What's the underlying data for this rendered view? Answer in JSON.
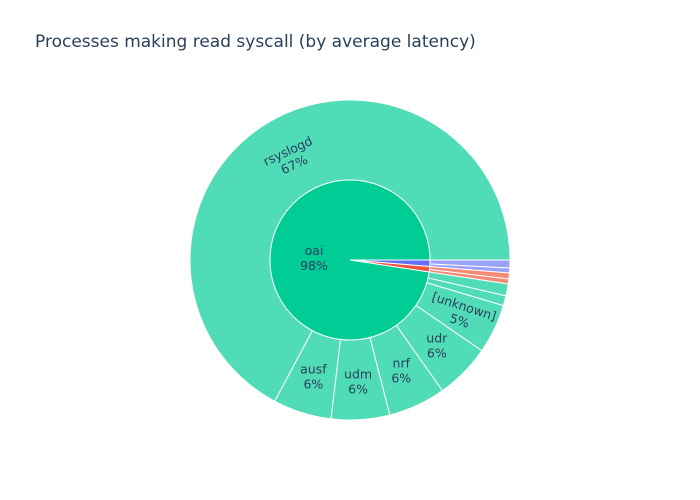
{
  "chart_data": {
    "type": "sunburst",
    "title": "Processes making read syscall (by average latency)",
    "colors": {
      "background": "#ffffff",
      "inner_oai": "#00cc96",
      "outer_oai_children": "#4fdcb6",
      "inner_blue": "#636efa",
      "inner_red": "#ef553b",
      "outer_blue": "#9aa1fb",
      "outer_red": "#f48a73",
      "text": "#2a3f5f",
      "separator": "#ffffff"
    },
    "inner_ring": [
      {
        "name": "oai",
        "percent": 97.6,
        "label": "oai",
        "percent_label": "98%",
        "color": "#00cc96"
      },
      {
        "name": "blue-group",
        "percent": 1.3,
        "label": "",
        "percent_label": "",
        "color": "#636efa"
      },
      {
        "name": "red-group",
        "percent": 1.1,
        "label": "",
        "percent_label": "",
        "color": "#ef553b"
      }
    ],
    "outer_ring": [
      {
        "name": "rsyslogd",
        "parent": "oai",
        "percent": 67.2,
        "label": "rsyslogd",
        "percent_label": "67%"
      },
      {
        "name": "ausf",
        "parent": "oai",
        "percent": 5.9,
        "label": "ausf",
        "percent_label": "6%"
      },
      {
        "name": "udm",
        "parent": "oai",
        "percent": 5.9,
        "label": "udm",
        "percent_label": "6%"
      },
      {
        "name": "nrf",
        "parent": "oai",
        "percent": 5.8,
        "label": "nrf",
        "percent_label": "6%"
      },
      {
        "name": "udr",
        "parent": "oai",
        "percent": 5.6,
        "label": "udr",
        "percent_label": "6%"
      },
      {
        "name": "[unknown]",
        "parent": "oai",
        "percent": 5.0,
        "label": "[unknown]",
        "percent_label": "5%"
      },
      {
        "name": "small-1",
        "parent": "oai",
        "percent": 1.2,
        "label": "",
        "percent_label": ""
      },
      {
        "name": "small-2",
        "parent": "oai",
        "percent": 1.0,
        "label": "",
        "percent_label": ""
      },
      {
        "name": "blue-child-1",
        "parent": "blue-group",
        "percent": 0.8,
        "label": "",
        "percent_label": ""
      },
      {
        "name": "blue-child-2",
        "parent": "blue-group",
        "percent": 0.5,
        "label": "",
        "percent_label": ""
      },
      {
        "name": "red-child-1",
        "parent": "red-group",
        "percent": 0.6,
        "label": "",
        "percent_label": ""
      },
      {
        "name": "red-child-2",
        "parent": "red-group",
        "percent": 0.5,
        "label": "",
        "percent_label": ""
      }
    ]
  }
}
